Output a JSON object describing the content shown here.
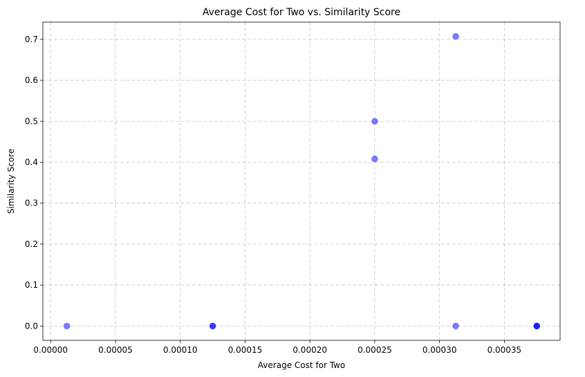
{
  "chart_data": {
    "type": "scatter",
    "title": "Average Cost for Two vs. Similarity Score",
    "xlabel": "Average Cost for Two",
    "ylabel": "Similarity Score",
    "xlim": [
      -6e-06,
      0.000393
    ],
    "ylim": [
      -0.035,
      0.742
    ],
    "x_ticks": [
      0,
      5e-05,
      0.0001,
      0.00015,
      0.0002,
      0.00025,
      0.0003,
      0.00035
    ],
    "x_tick_labels": [
      "0.00000",
      "0.00005",
      "0.00010",
      "0.00015",
      "0.00020",
      "0.00025",
      "0.00030",
      "0.00035"
    ],
    "y_ticks": [
      0,
      0.1,
      0.2,
      0.3,
      0.4,
      0.5,
      0.6,
      0.7
    ],
    "y_tick_labels": [
      "0.0",
      "0.1",
      "0.2",
      "0.3",
      "0.4",
      "0.5",
      "0.6",
      "0.7"
    ],
    "grid": true,
    "marker_color": "#0000ff",
    "marker_alpha": 0.5,
    "points": [
      {
        "x": 1.25e-05,
        "y": 0.0
      },
      {
        "x": 0.000125,
        "y": 0.0
      },
      {
        "x": 0.000125,
        "y": 0.0
      },
      {
        "x": 0.00025,
        "y": 0.5
      },
      {
        "x": 0.00025,
        "y": 0.408
      },
      {
        "x": 0.0003125,
        "y": 0.707
      },
      {
        "x": 0.0003125,
        "y": 0.0
      },
      {
        "x": 0.000375,
        "y": 0.0
      },
      {
        "x": 0.000375,
        "y": 0.0
      },
      {
        "x": 0.000375,
        "y": 0.0
      }
    ]
  }
}
